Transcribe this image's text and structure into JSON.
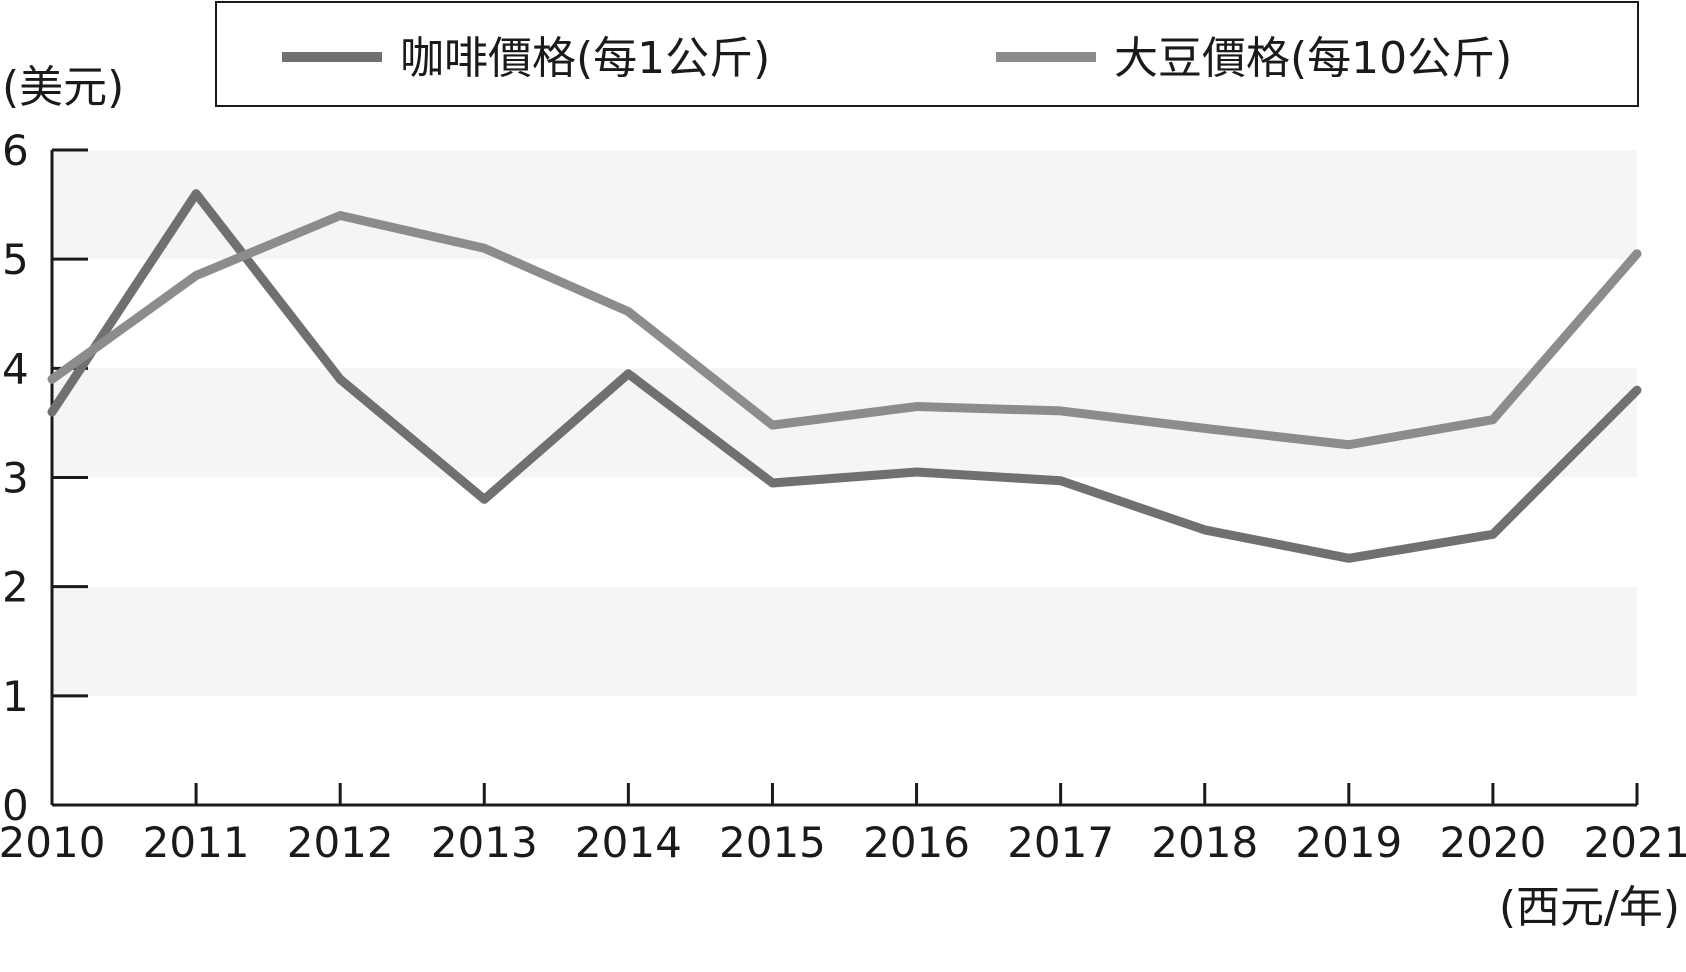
{
  "chart_data": {
    "type": "line",
    "ylabel": "(美元)",
    "xlabel": "(西元/年)",
    "x": [
      "2010",
      "2011",
      "2012",
      "2013",
      "2014",
      "2015",
      "2016",
      "2017",
      "2018",
      "2019",
      "2020",
      "2021"
    ],
    "ylim": [
      0,
      6
    ],
    "yticks": [
      0,
      1,
      2,
      3,
      4,
      5,
      6
    ],
    "grid": "alternating bands",
    "legend_position": "top",
    "series": [
      {
        "name": "咖啡價格(每1公斤)",
        "color": "#707070",
        "values": [
          3.6,
          5.6,
          3.9,
          2.8,
          3.95,
          2.95,
          3.05,
          2.97,
          2.52,
          2.26,
          2.48,
          3.8
        ]
      },
      {
        "name": "大豆價格(每10公斤)",
        "color": "#8c8c8c",
        "values": [
          3.9,
          4.85,
          5.4,
          5.1,
          4.52,
          3.48,
          3.65,
          3.61,
          3.45,
          3.3,
          3.53,
          5.05
        ]
      }
    ]
  }
}
